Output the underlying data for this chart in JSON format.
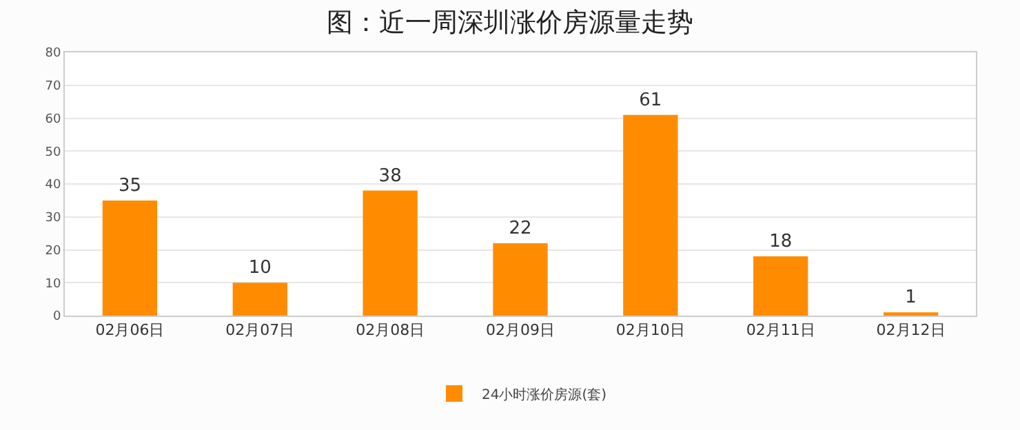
{
  "chart_data": {
    "type": "bar",
    "title": "图：近一周深圳涨价房源量走势",
    "categories": [
      "02月06日",
      "02月07日",
      "02月08日",
      "02月09日",
      "02月10日",
      "02月11日",
      "02月12日"
    ],
    "series": [
      {
        "name": "24小时涨价房源(套)",
        "color": "#ff8c00",
        "values": [
          35,
          10,
          38,
          22,
          61,
          18,
          1
        ]
      }
    ],
    "ylim": [
      0,
      80
    ],
    "yticks": [
      0,
      10,
      20,
      30,
      40,
      50,
      60,
      70,
      80
    ],
    "grid": "y",
    "legend": "bottom",
    "data_labels": true
  }
}
